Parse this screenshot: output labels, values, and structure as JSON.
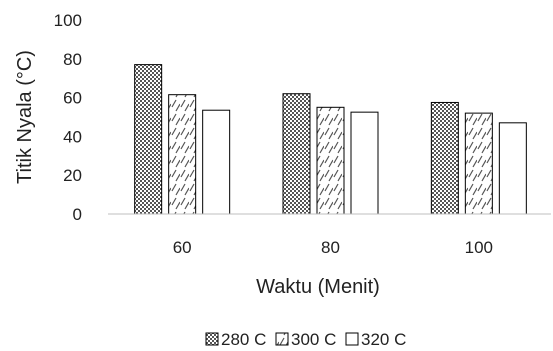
{
  "chart_data": {
    "type": "bar",
    "categories": [
      "60",
      "80",
      "100"
    ],
    "series": [
      {
        "name": "280 C",
        "values": [
          77,
          62,
          57.5
        ],
        "pattern": "checker",
        "color": "#555555"
      },
      {
        "name": "300 C",
        "values": [
          61.5,
          55,
          52
        ],
        "pattern": "hatch",
        "color": "#555555"
      },
      {
        "name": "320 C",
        "values": [
          53.5,
          52.5,
          47
        ],
        "pattern": "none",
        "color": "#555555"
      }
    ],
    "title": "",
    "xlabel": "Waktu (Menit)",
    "ylabel": "Titik Nyala (°C)",
    "ylim": [
      0,
      100
    ],
    "yticks": [
      0,
      20,
      40,
      60,
      80,
      100
    ],
    "grid": false,
    "legend_position": "bottom"
  }
}
